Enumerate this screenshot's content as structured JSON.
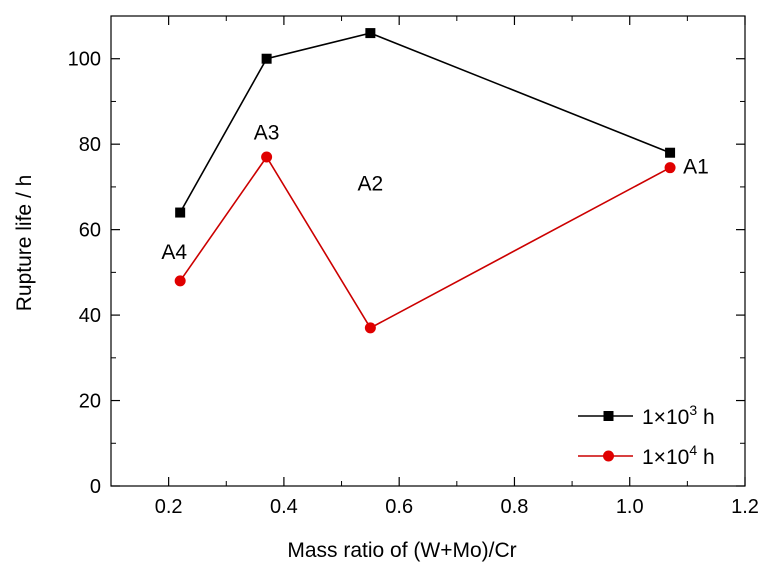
{
  "chart_data": {
    "type": "line",
    "xlabel": "Mass ratio of (W+Mo)/Cr",
    "ylabel": "Rupture life / h",
    "xlim": [
      0.1,
      1.2
    ],
    "ylim": [
      0,
      110
    ],
    "x_ticks": [
      0.2,
      0.4,
      0.6,
      0.8,
      1.0,
      1.2
    ],
    "x_tick_labels": [
      "0.2",
      "0.4",
      "0.6",
      "0.8",
      "1.0",
      "1.2"
    ],
    "y_ticks": [
      0,
      20,
      40,
      60,
      80,
      100
    ],
    "y_tick_labels": [
      "0",
      "20",
      "40",
      "60",
      "80",
      "100"
    ],
    "grid": false,
    "legend_position": "bottom-right",
    "series": [
      {
        "name": "1×10³ h",
        "name_base": "1×10",
        "name_exp": "3",
        "name_unit": " h",
        "color": "#000000",
        "marker": "square",
        "x": [
          0.22,
          0.37,
          0.55,
          1.07
        ],
        "y": [
          64,
          100,
          106,
          78
        ]
      },
      {
        "name": "1×10⁴ h",
        "name_base": "1×10",
        "name_exp": "4",
        "name_unit": " h",
        "color": "#e00000",
        "line_color": "#cc0000",
        "marker": "circle",
        "x": [
          0.22,
          0.37,
          0.55,
          1.07
        ],
        "y": [
          48,
          77,
          37,
          74.5
        ]
      }
    ],
    "annotations": [
      {
        "text": "A4",
        "x": 0.22,
        "y": 55
      },
      {
        "text": "A3",
        "x": 0.37,
        "y": 83
      },
      {
        "text": "A2",
        "x": 0.55,
        "y": 71
      },
      {
        "text": "A1",
        "x": 1.07,
        "y": 75
      }
    ]
  }
}
